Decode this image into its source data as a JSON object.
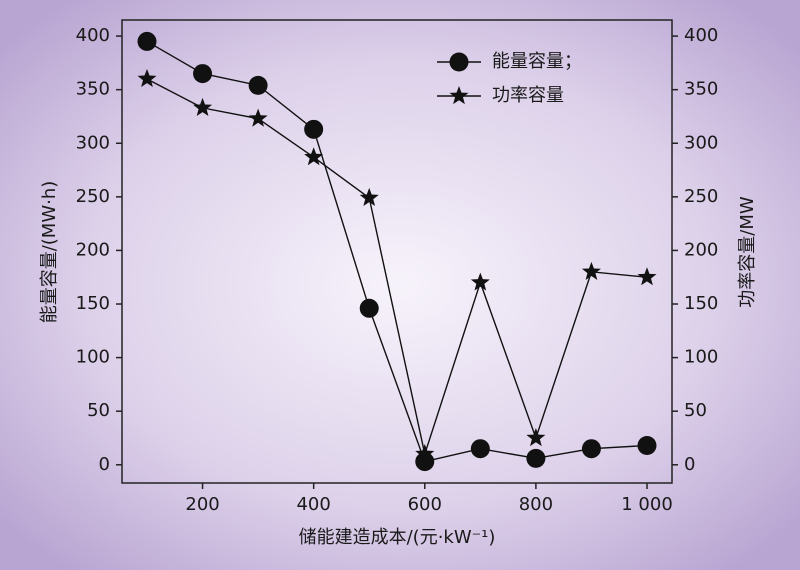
{
  "chart_data": {
    "type": "line",
    "x_label": "储能建造成本/(元·kW⁻¹)",
    "y_label": "能量容量/(MW·h)",
    "y2_label": "功率容量/MW",
    "x": [
      100,
      200,
      300,
      400,
      500,
      600,
      700,
      800,
      900,
      1000
    ],
    "series": [
      {
        "name": "能量容量；",
        "color": "#111111",
        "marker": "circle",
        "values": [
          395,
          365,
          354,
          313,
          146,
          3,
          15,
          6,
          15,
          18
        ]
      },
      {
        "name": "功率容量",
        "color": "#111111",
        "marker": "star",
        "axis": "y2",
        "values": [
          360,
          333,
          323,
          287,
          249,
          10,
          170,
          25,
          180,
          175
        ]
      }
    ],
    "xlim": [
      55,
      1045
    ],
    "xticks": [
      200,
      400,
      600,
      800,
      {
        "value": 1000,
        "label": "1 000"
      }
    ],
    "ylim": [
      -17,
      415
    ],
    "yticks": [
      0,
      50,
      100,
      150,
      200,
      250,
      300,
      350,
      400
    ],
    "y2lim": [
      -17,
      415
    ],
    "y2ticks": [
      0,
      50,
      100,
      150,
      200,
      250,
      300,
      350,
      400
    ],
    "legend": "upper right"
  }
}
